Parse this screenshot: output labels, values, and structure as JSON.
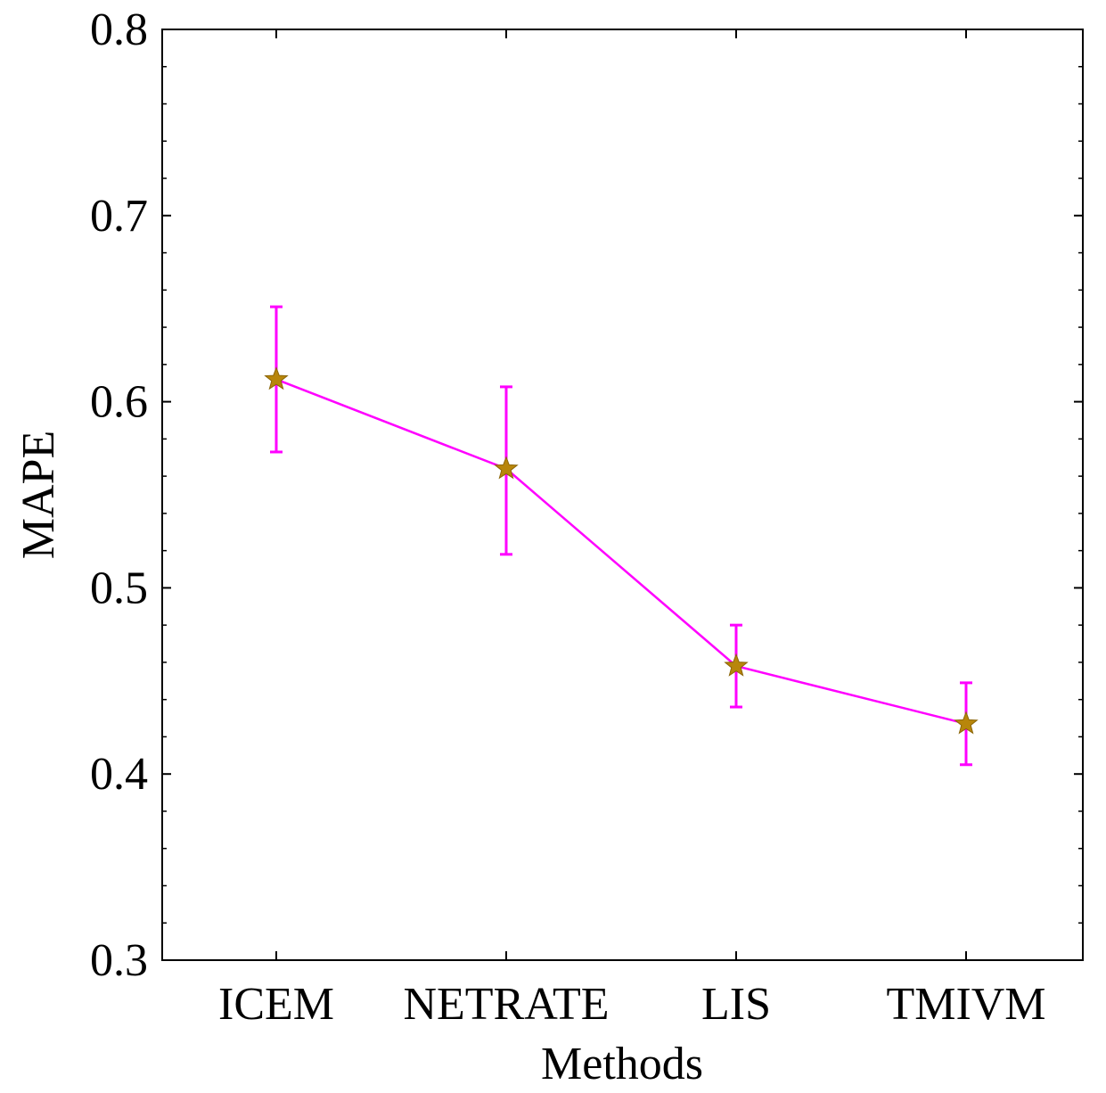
{
  "chart_data": {
    "type": "line",
    "title": "",
    "xlabel": "Methods",
    "ylabel": "MAPE",
    "categories": [
      "ICEM",
      "NETRATE",
      "LIS",
      "TMIVM"
    ],
    "series": [
      {
        "name": "MAPE",
        "values": [
          0.612,
          0.564,
          0.458,
          0.427
        ],
        "error_upper": [
          0.651,
          0.608,
          0.48,
          0.449
        ],
        "error_lower": [
          0.573,
          0.518,
          0.436,
          0.405
        ],
        "line_color": "#ff00ff",
        "marker": "star",
        "marker_color": "#b8860b"
      }
    ],
    "ylim": [
      0.3,
      0.8
    ],
    "yticks": [
      "0.3",
      "0.4",
      "0.5",
      "0.6",
      "0.7",
      "0.8"
    ],
    "grid": false,
    "legend": "none"
  }
}
